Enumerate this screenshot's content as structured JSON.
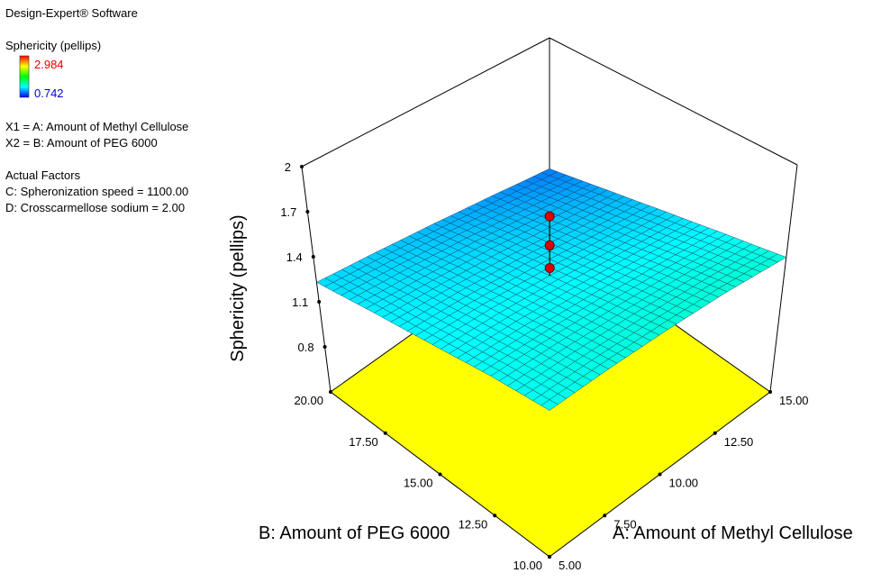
{
  "software": "Design-Expert® Software",
  "chart_data": {
    "type": "surface3d",
    "response": "Sphericity (pellips)",
    "color_max": 2.984,
    "color_min": 0.742,
    "factor_lines": [
      "X1 = A: Amount of Methyl Cellulose",
      "X2 = B: Amount of PEG 6000"
    ],
    "actual_factors_title": "Actual Factors",
    "actual_factors": [
      "C: Spheronization speed = 1100.00",
      "D: Crosscarmellose sodium  = 2.00"
    ],
    "xlabel": "A: Amount of Methyl Cellulose",
    "ylabel": "B: Amount of PEG 6000",
    "zlabel": "Sphericity (pellips)",
    "xlim": [
      5,
      15
    ],
    "xticks": [
      {
        "value": 5,
        "label": "5.00"
      },
      {
        "value": 7.5,
        "label": "7.50"
      },
      {
        "value": 10,
        "label": "10.00"
      },
      {
        "value": 12.5,
        "label": "12.50"
      },
      {
        "value": 15,
        "label": "15.00"
      }
    ],
    "ylim": [
      10,
      20
    ],
    "yticks": [
      {
        "value": 10,
        "label": "10.00"
      },
      {
        "value": 12.5,
        "label": "12.50"
      },
      {
        "value": 15,
        "label": "15.00"
      },
      {
        "value": 17.5,
        "label": "17.50"
      },
      {
        "value": 20,
        "label": "20.00"
      }
    ],
    "zlim": [
      0.5,
      2
    ],
    "zticks": [
      0.8,
      1.1,
      1.4,
      1.7,
      2
    ],
    "x": [
      5,
      7.5,
      10,
      12.5,
      15
    ],
    "y": [
      10,
      12.5,
      15,
      17.5,
      20
    ],
    "z": [
      [
        1.34,
        1.37,
        1.39,
        1.4,
        1.39
      ],
      [
        1.33,
        1.34,
        1.34,
        1.33,
        1.31
      ],
      [
        1.3,
        1.3,
        1.28,
        1.25,
        1.22
      ],
      [
        1.27,
        1.25,
        1.22,
        1.17,
        1.12
      ],
      [
        1.23,
        1.19,
        1.14,
        1.08,
        1.01
      ]
    ],
    "floor_color": "#ffff00",
    "contour_color": "#00c8d0",
    "design_points": {
      "x": [
        10,
        10,
        10
      ],
      "y": [
        15,
        15,
        15
      ],
      "z": [
        1.67,
        1.48,
        1.33
      ],
      "color": "#e00000"
    }
  }
}
